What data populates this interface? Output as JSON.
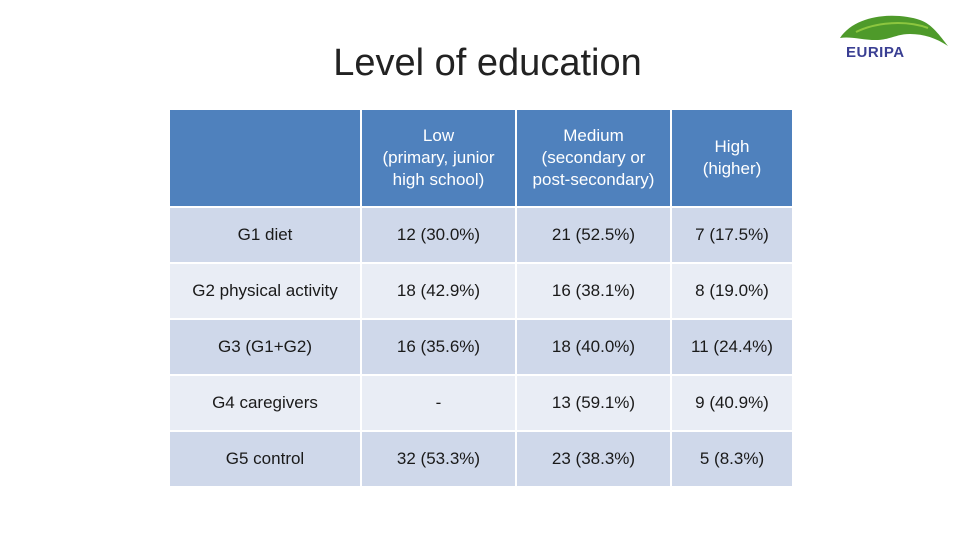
{
  "title": "Level of education",
  "logo": {
    "text": "EURIPA",
    "color": "#3a3f93",
    "leaf_color": "#4e9a2a"
  },
  "table": {
    "header": [
      "",
      "Low\n(primary, junior\nhigh school)",
      "Medium\n(secondary or\npost-secondary)",
      "High\n(higher)"
    ],
    "rows": [
      [
        "G1 diet",
        "12 (30.0%)",
        "21 (52.5%)",
        "7 (17.5%)"
      ],
      [
        "G2 physical activity",
        "18 (42.9%)",
        "16 (38.1%)",
        "8 (19.0%)"
      ],
      [
        "G3 (G1+G2)",
        "16 (35.6%)",
        "18 (40.0%)",
        "11 (24.4%)"
      ],
      [
        "G4 caregivers",
        "-",
        "13 (59.1%)",
        "9 (40.9%)"
      ],
      [
        "G5 control",
        "32 (53.3%)",
        "23 (38.3%)",
        "5 (8.3%)"
      ]
    ]
  },
  "colors": {
    "header_bg": "#4f81bd",
    "row_dark": "#cfd8ea",
    "row_light": "#e9edf5"
  }
}
